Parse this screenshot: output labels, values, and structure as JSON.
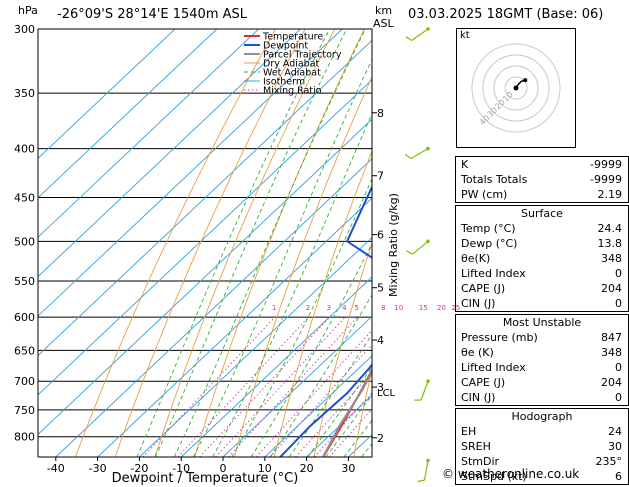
{
  "header": {
    "location": "-26°09'S 28°14'E 1540m ASL",
    "datetime": "03.03.2025 18GMT (Base: 06)",
    "pressure_unit": "hPa",
    "alt_unit_top": "km",
    "alt_unit_bottom": "ASL"
  },
  "chart_data": {
    "type": "line",
    "title": "-26°09'S 28°14'E 1540m ASL",
    "xlabel": "Dewpoint / Temperature (°C)",
    "ylabel": "hPa",
    "y2label": "Mixing Ratio (g/kg)",
    "xlim": [
      -45,
      35
    ],
    "ylim": [
      840,
      300
    ],
    "x_ticks": [
      -40,
      -30,
      -20,
      -10,
      0,
      10,
      20,
      30
    ],
    "pressure_ticks": [
      300,
      350,
      400,
      450,
      500,
      550,
      600,
      650,
      700,
      750,
      800
    ],
    "km_ticks": [
      {
        "label": "8",
        "p": 367
      },
      {
        "label": "7",
        "p": 427
      },
      {
        "label": "6",
        "p": 492
      },
      {
        "label": "5",
        "p": 559
      },
      {
        "label": "4",
        "p": 634
      },
      {
        "label": "3",
        "p": 710
      },
      {
        "label": "2",
        "p": 802
      }
    ],
    "lcl_label": "LCL",
    "lcl_p": 718,
    "mixing_ratio_labels": [
      "1",
      "2",
      "3",
      "4",
      "5",
      "8",
      "10",
      "15",
      "20",
      "25"
    ],
    "mixing_ratio_label_p": 590,
    "legend": [
      "Temperature",
      "Dewpoint",
      "Parcel Trajectory",
      "Dry Adiabat",
      "Wet Adiabat",
      "Isotherm",
      "Mixing Ratio"
    ],
    "legend_position": "top-left",
    "series": [
      {
        "name": "Temperature",
        "color": "#e03030",
        "points": [
          [
            24.4,
            847
          ],
          [
            20.5,
            780
          ],
          [
            16.5,
            720
          ],
          [
            13.5,
            680
          ],
          [
            10.5,
            640
          ],
          [
            9.0,
            600
          ],
          [
            8.0,
            560
          ],
          [
            6.5,
            520
          ],
          [
            5.0,
            490
          ],
          [
            1.0,
            450
          ],
          [
            -3.0,
            410
          ],
          [
            -8.0,
            370
          ],
          [
            -12.0,
            340
          ]
        ]
      },
      {
        "name": "Dewpoint",
        "color": "#2050d0",
        "points": [
          [
            13.8,
            847
          ],
          [
            13.0,
            780
          ],
          [
            13.5,
            720
          ],
          [
            12.5,
            680
          ],
          [
            11.0,
            640
          ],
          [
            8.0,
            600
          ],
          [
            0.0,
            560
          ],
          [
            -10.0,
            530
          ],
          [
            -25.0,
            500
          ],
          [
            -30.0,
            460
          ],
          [
            -34.0,
            430
          ],
          [
            -38.0,
            400
          ],
          [
            -38.0,
            360
          ],
          [
            -37.0,
            320
          ],
          [
            -36.0,
            300
          ]
        ]
      },
      {
        "name": "Parcel Trajectory",
        "color": "#909090",
        "points": [
          [
            24.4,
            847
          ],
          [
            20.0,
            780
          ],
          [
            16.5,
            718
          ],
          [
            13.0,
            670
          ],
          [
            10.5,
            620
          ],
          [
            8.5,
            570
          ],
          [
            6.0,
            520
          ],
          [
            3.0,
            470
          ],
          [
            -0.5,
            430
          ],
          [
            -5.0,
            390
          ],
          [
            -10.0,
            350
          ]
        ]
      }
    ],
    "wind_barbs": [
      {
        "p": 300,
        "dir": 235,
        "kt": 8
      },
      {
        "p": 400,
        "dir": 240,
        "kt": 12
      },
      {
        "p": 500,
        "dir": 230,
        "kt": 10
      },
      {
        "p": 700,
        "dir": 200,
        "kt": 6
      },
      {
        "p": 847,
        "dir": 190,
        "kt": 5
      }
    ]
  },
  "hodograph": {
    "unit": "kt",
    "ring_labels": [
      "10",
      "20",
      "30",
      "40"
    ],
    "points": [
      [
        0,
        0
      ],
      [
        2,
        3
      ],
      [
        4,
        5
      ],
      [
        7,
        6
      ]
    ]
  },
  "indices": {
    "top": [
      {
        "label": "K",
        "value": "-9999"
      },
      {
        "label": "Totals Totals",
        "value": "-9999"
      },
      {
        "label": "PW (cm)",
        "value": "2.19"
      }
    ],
    "surface": {
      "title": "Surface",
      "rows": [
        {
          "label": "Temp (°C)",
          "value": "24.4"
        },
        {
          "label": "Dewp (°C)",
          "value": "13.8"
        },
        {
          "label": "θe(K)",
          "value": "348"
        },
        {
          "label": "Lifted Index",
          "value": "0"
        },
        {
          "label": "CAPE (J)",
          "value": "204"
        },
        {
          "label": "CIN (J)",
          "value": "0"
        }
      ]
    },
    "most_unstable": {
      "title": "Most Unstable",
      "rows": [
        {
          "label": "Pressure (mb)",
          "value": "847"
        },
        {
          "label": "θe (K)",
          "value": "348"
        },
        {
          "label": "Lifted Index",
          "value": "0"
        },
        {
          "label": "CAPE (J)",
          "value": "204"
        },
        {
          "label": "CIN (J)",
          "value": "0"
        }
      ]
    },
    "hodograph": {
      "title": "Hodograph",
      "rows": [
        {
          "label": "EH",
          "value": "24"
        },
        {
          "label": "SREH",
          "value": "30"
        },
        {
          "label": "StmDir",
          "value": "235°"
        },
        {
          "label": "StmSpd (kt)",
          "value": "6"
        }
      ]
    }
  },
  "footer": {
    "copyright": "© weatheronline.co.uk"
  },
  "colors": {
    "temperature": "#e03030",
    "dewpoint": "#2050d0",
    "parcel": "#909090",
    "dry_adiabat": "#e8a040",
    "wet_adiabat": "#30b030",
    "isotherm": "#30a0e0",
    "mixing_ratio": "#d030b0",
    "wind": "#80c000"
  }
}
